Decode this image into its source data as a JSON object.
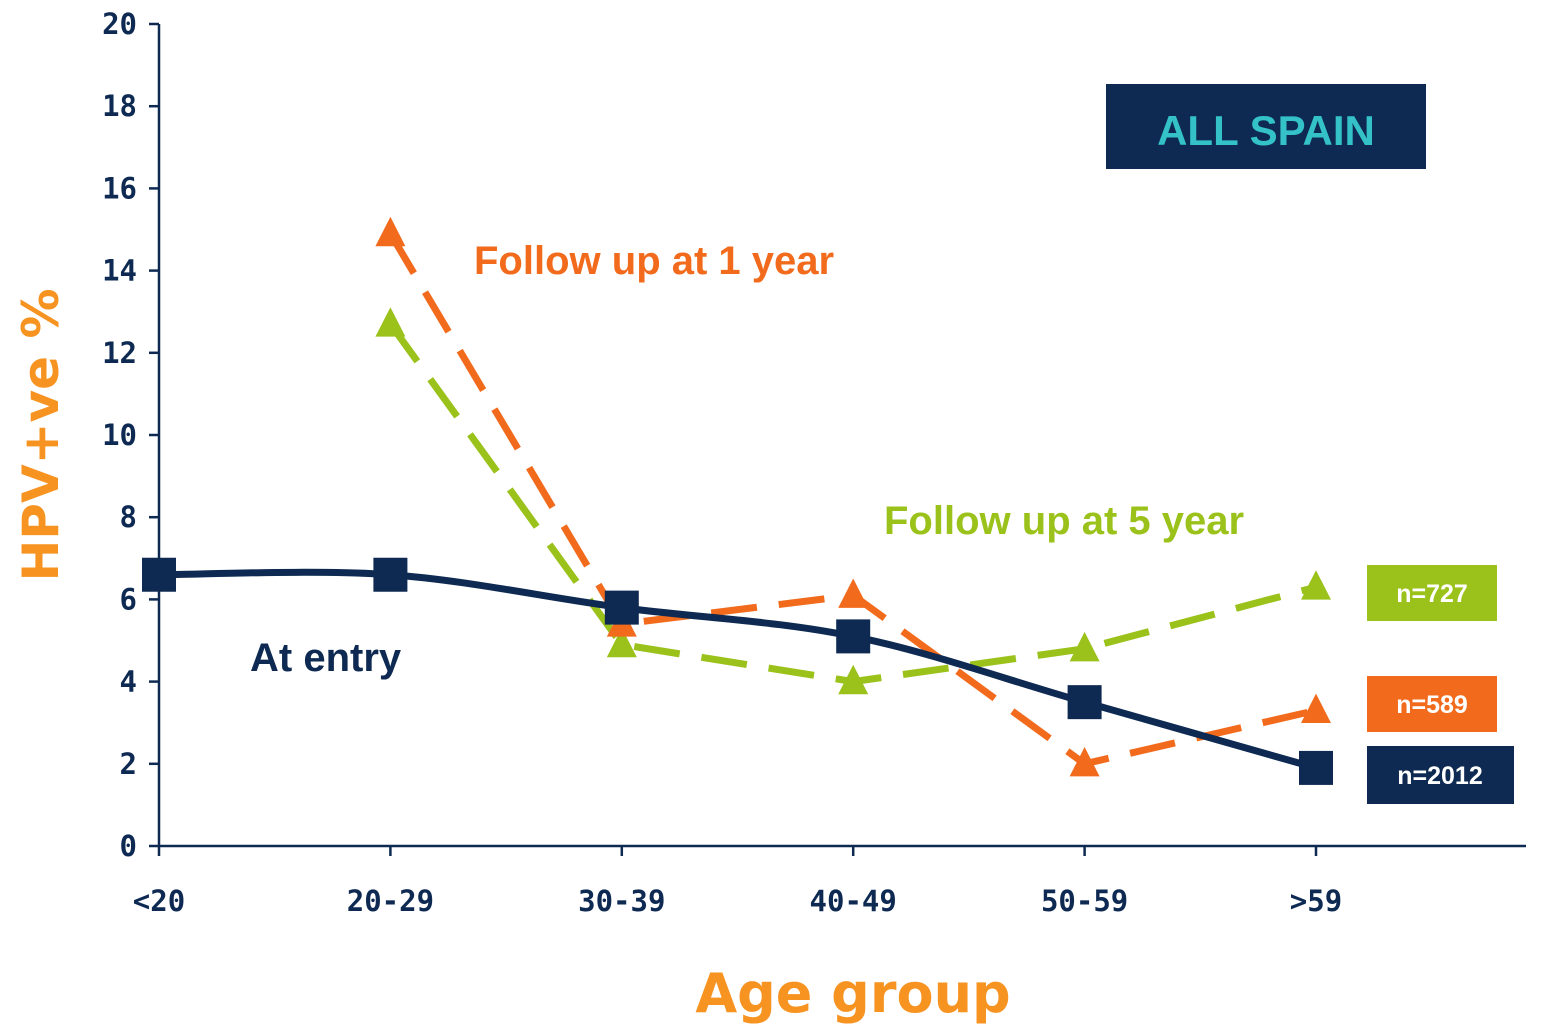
{
  "chart_data": {
    "type": "line",
    "categories": [
      "<20",
      "20-29",
      "30-39",
      "40-49",
      "50-59",
      ">59"
    ],
    "ylabel": "HPV+ve %",
    "xlabel": "Age group",
    "ylim": [
      0,
      20
    ],
    "yticks": [
      "0",
      "2",
      "4",
      "6",
      "8",
      "10",
      "12",
      "14",
      "16",
      "18",
      "20"
    ],
    "grid": false,
    "series": [
      {
        "name": "At entry",
        "color": "#0e2a52",
        "marker": "square",
        "style": "solid",
        "values": [
          6.6,
          6.6,
          5.8,
          5.1,
          3.5,
          1.9
        ],
        "n_label": "n=2012"
      },
      {
        "name": "Follow up at 1 year",
        "color": "#f26b1d",
        "marker": "triangle",
        "style": "dashed",
        "values": [
          null,
          14.9,
          5.4,
          6.1,
          2.0,
          3.3
        ],
        "n_label": "n=589"
      },
      {
        "name": "Follow up at 5 year",
        "color": "#9ac21b",
        "marker": "triangle",
        "style": "dashed",
        "values": [
          null,
          12.7,
          4.9,
          4.0,
          4.8,
          6.3
        ],
        "n_label": "n=727"
      }
    ],
    "badge": {
      "text": "ALL SPAIN",
      "bg": "#0e2a52",
      "fg": "#34c1c8"
    }
  }
}
